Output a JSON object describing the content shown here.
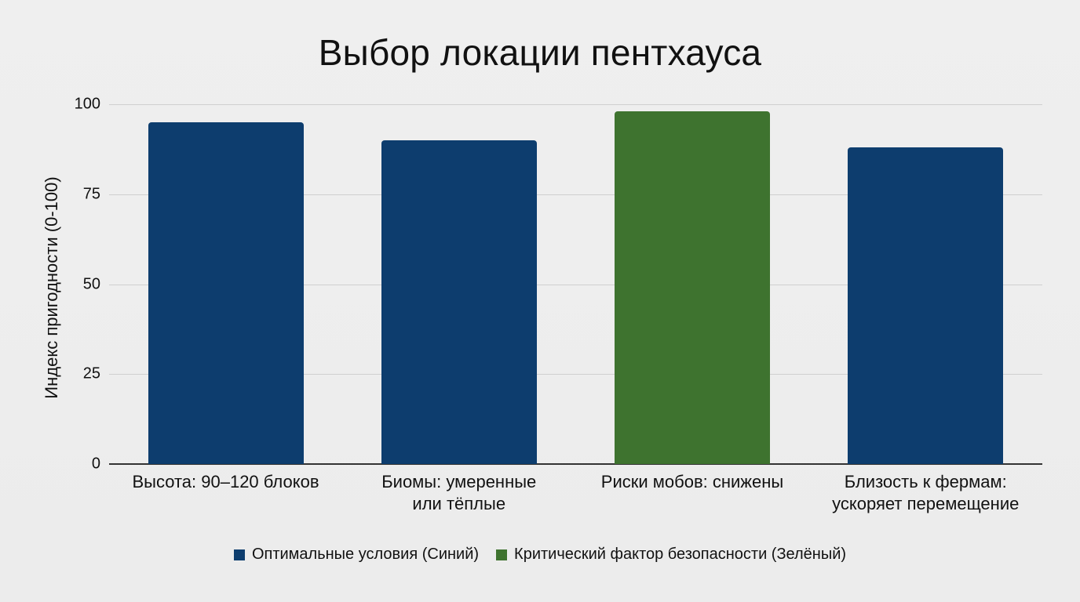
{
  "chart_data": {
    "type": "bar",
    "title": "Выбор локации пентхауса",
    "xlabel": "",
    "ylabel": "Индекс пригодности (0-100)",
    "ylim": [
      0,
      100
    ],
    "yticks": [
      "0",
      "25",
      "50",
      "75",
      "100"
    ],
    "grid": true,
    "legend_position": "bottom",
    "categories": [
      "Высота: 90–120 блоков",
      "Биомы: умеренные или тёплые",
      "Риски мобов: снижены",
      "Близость к фермам: ускоряет перемещение"
    ],
    "values": [
      95,
      90,
      98,
      88
    ],
    "bar_series": [
      "Оптимальные условия (Синий)",
      "Оптимальные условия (Синий)",
      "Критический фактор безопасности (Зелёный)",
      "Оптимальные условия (Синий)"
    ],
    "legend": [
      {
        "label": "Оптимальные условия (Синий)",
        "color": "#0d3d6e"
      },
      {
        "label": "Критический фактор безопасности (Зелёный)",
        "color": "#3e732f"
      }
    ]
  },
  "labels": {
    "title": "Выбор локации пентхауса",
    "ylabel": "Индекс пригодности (0-100)",
    "yticks": [
      "0",
      "25",
      "50",
      "75",
      "100"
    ],
    "x": [
      [
        "Высота: 90–120 блоков"
      ],
      [
        "Биомы: умеренные",
        "или тёплые"
      ],
      [
        "Риски мобов: снижены"
      ],
      [
        "Близость к фермам:",
        "ускоряет перемещение"
      ]
    ],
    "legend": [
      "Оптимальные условия (Синий)",
      "Критический фактор безопасности (Зелёный)"
    ]
  },
  "colors": {
    "blue": "#0d3d6e",
    "green": "#3e732f",
    "background": "#eeeeee",
    "gridline": "#cfcfcf"
  }
}
